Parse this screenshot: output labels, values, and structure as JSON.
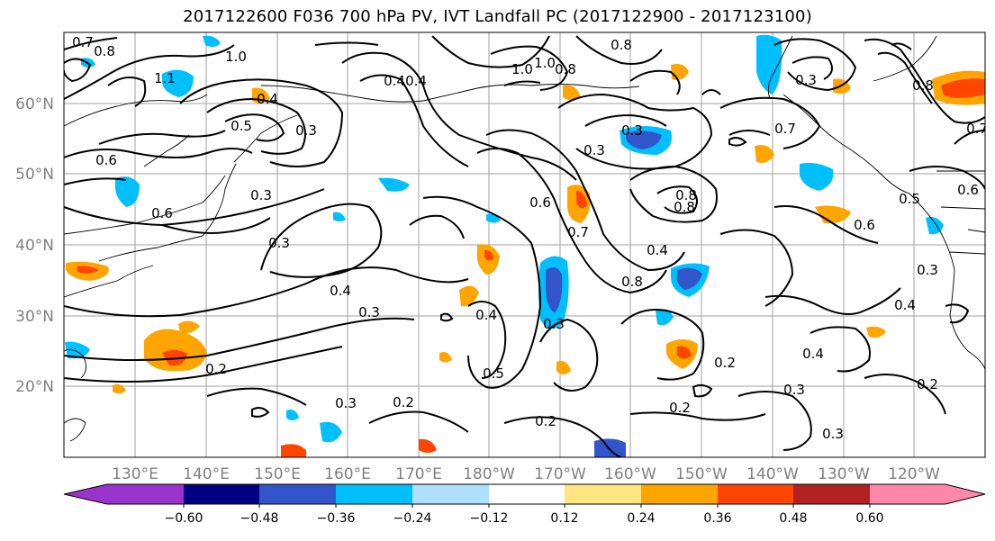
{
  "title": "2017122600 F036 700 hPa PV, IVT Landfall PC (2017122900 - 2017123100)",
  "map": {
    "lat_labels": [
      "60°N",
      "50°N",
      "40°N",
      "30°N",
      "20°N"
    ],
    "lon_labels": [
      "130°E",
      "140°E",
      "150°E",
      "160°E",
      "170°E",
      "180°W",
      "170°W",
      "160°W",
      "150°W",
      "140°W",
      "130°W",
      "120°W"
    ],
    "contour_labels": [
      "0.7",
      "0.8",
      "1.0",
      "1.1",
      "0.4",
      "0.5",
      "0.3",
      "1.0",
      "0.8",
      "0.6",
      "0.6",
      "0.3",
      "0.4",
      "0.3",
      "0.4",
      "0.3",
      "0.2",
      "0.2",
      "0.3",
      "0.2",
      "0.5",
      "0.4",
      "0.3",
      "0.6",
      "0.7",
      "0.8",
      "0.4",
      "0.8",
      "0.3",
      "0.2",
      "0.2",
      "0.4",
      "0.3",
      "0.3",
      "0.2",
      "0.4",
      "0.3",
      "0.6",
      "0.5",
      "0.6",
      "0.8",
      "0.7",
      "0.3",
      "0.8",
      "0.8",
      "1.0",
      "0.4",
      "0.3",
      "0.7"
    ]
  },
  "colorbar": {
    "colors": [
      "#9933cc",
      "#000080",
      "#3355cc",
      "#00bfff",
      "#b0e0ff",
      "#ffffff",
      "#ffe680",
      "#ffa500",
      "#ff4500",
      "#b22222",
      "#ff88aa"
    ],
    "tick_labels": [
      "−0.60",
      "−0.48",
      "−0.36",
      "−0.24",
      "−0.12",
      "0.12",
      "0.24",
      "0.36",
      "0.48",
      "0.60"
    ]
  }
}
